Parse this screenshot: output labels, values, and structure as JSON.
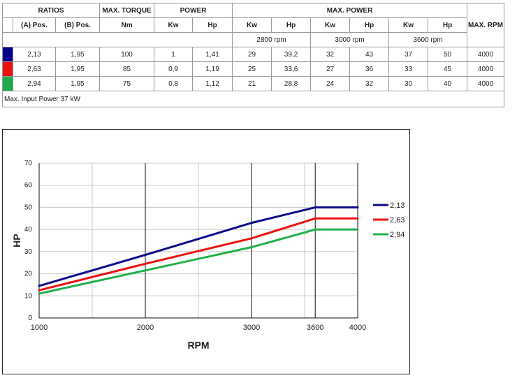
{
  "table": {
    "headers": {
      "ratios": "RATIOS",
      "max_torque": "MAX. TORQUE",
      "power": "POWER",
      "max_power": "MAX. POWER",
      "max_rpm": "MAX. RPM"
    },
    "subheaders": {
      "a_pos": "(A) Pos.",
      "b_pos": "(B) Pos.",
      "nm": "Nm",
      "kw": "Kw",
      "hp": "Hp"
    },
    "rpm_groups": [
      "2800 rpm",
      "3000 rpm",
      "3600 rpm"
    ],
    "rows": [
      {
        "color": "#00008b",
        "a": "2,13",
        "b": "1,95",
        "torque": "100",
        "kw": "1",
        "hp": "1,41",
        "kw2800": "29",
        "hp2800": "39,2",
        "kw3000": "32",
        "hp3000": "43",
        "kw3600": "37",
        "hp3600": "50",
        "maxrpm": "4000"
      },
      {
        "color": "#ee1111",
        "a": "2,63",
        "b": "1,95",
        "torque": "85",
        "kw": "0,9",
        "hp": "1,19",
        "kw2800": "25",
        "hp2800": "33,6",
        "kw3000": "27",
        "hp3000": "36",
        "kw3600": "33",
        "hp3600": "45",
        "maxrpm": "4000"
      },
      {
        "color": "#1faa4a",
        "a": "2,94",
        "b": "1,95",
        "torque": "75",
        "kw": "0,8",
        "hp": "1,12",
        "kw2800": "21",
        "hp2800": "28,8",
        "kw3000": "24",
        "hp3000": "32",
        "kw3600": "30",
        "hp3600": "40",
        "maxrpm": "4000"
      }
    ],
    "note": "Max. Input Power 37 kW"
  },
  "chart_data": {
    "type": "line",
    "xlabel": "RPM",
    "ylabel": "HP",
    "x": [
      1000,
      2000,
      3000,
      3600,
      4000
    ],
    "x_ticks": [
      "1000",
      "2000",
      "3000",
      "3600",
      "4000"
    ],
    "ylim": [
      0,
      70
    ],
    "y_ticks": [
      0,
      10,
      20,
      30,
      40,
      50,
      60,
      70
    ],
    "grid": true,
    "legend_position": "right",
    "series": [
      {
        "name": "2,13",
        "color": "#0b0b8a",
        "values": [
          14.5,
          28.5,
          43,
          50,
          50
        ]
      },
      {
        "name": "2,63",
        "color": "#ee1111",
        "values": [
          12.5,
          24.5,
          36,
          45,
          45
        ]
      },
      {
        "name": "2,94",
        "color": "#22b04a",
        "values": [
          11,
          21.5,
          32,
          40,
          40
        ]
      }
    ]
  }
}
